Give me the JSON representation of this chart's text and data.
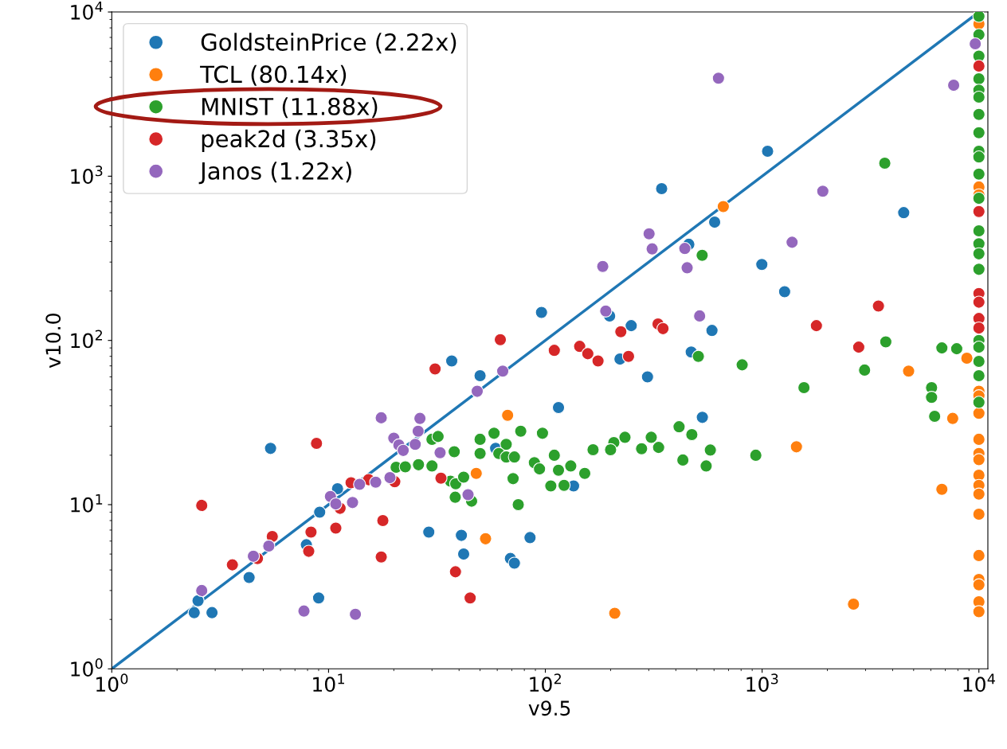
{
  "chart_data": {
    "type": "scatter",
    "xlabel": "v9.5",
    "ylabel": "v10.0",
    "log": "xy",
    "grid": false,
    "legend": "top left",
    "marker": "circle",
    "xlim": [
      1,
      11000
    ],
    "ylim": [
      1,
      10000
    ],
    "xticks": [
      {
        "value": 1,
        "label": "10$^{0}$"
      },
      {
        "value": 10,
        "label": "10$^{1}$"
      },
      {
        "value": 100,
        "label": "10$^{2}$"
      },
      {
        "value": 1000,
        "label": "10$^{3}$"
      },
      {
        "value": 10000,
        "label": "10$^{4}$"
      }
    ],
    "yticks": [
      {
        "value": 1,
        "label": "10$^{0}$"
      },
      {
        "value": 10,
        "label": "10$^{1}$"
      },
      {
        "value": 100,
        "label": "10$^{2}$"
      },
      {
        "value": 1000,
        "label": "10$^{3}$"
      },
      {
        "value": 10000,
        "label": "10$^{4}$"
      }
    ],
    "series": [
      {
        "name": "GoldsteinPrice (2.22x)",
        "color": "#1f77b4",
        "x": [
          2.4,
          2.5,
          2.9,
          4.3,
          5.4,
          7.9,
          9.1,
          9,
          11,
          29,
          37,
          41,
          42,
          50,
          59,
          69,
          72,
          85,
          96,
          115,
          135,
          198,
          221,
          249,
          296,
          344,
          459,
          471,
          530,
          587,
          604,
          997,
          1060,
          1270,
          4500
        ],
        "values": [
          2.2,
          2.6,
          2.2,
          3.6,
          22,
          5.7,
          9,
          2.7,
          12.5,
          6.8,
          75,
          6.5,
          5,
          61,
          22,
          4.7,
          4.4,
          6.3,
          148,
          39,
          13,
          141,
          77,
          123,
          60,
          840,
          385,
          85,
          34,
          115,
          525,
          290,
          1420,
          198,
          600
        ]
      },
      {
        "name": "TCL (80.14x)",
        "color": "#ff7f0e",
        "x": [
          67,
          48,
          53,
          662,
          209,
          1440,
          2640,
          4740,
          7570,
          6750,
          8800,
          10000,
          10000,
          10000,
          10000,
          10000,
          10000,
          10000,
          10000,
          10000,
          10000,
          10000,
          10000,
          10000,
          10000,
          10000,
          10000,
          10000,
          10000
        ],
        "values": [
          35,
          15.5,
          6.2,
          653,
          2.18,
          22.5,
          2.48,
          65,
          33.5,
          12.4,
          78,
          49,
          46,
          36,
          25,
          20.5,
          18.8,
          15.1,
          13.1,
          11.6,
          8.75,
          4.9,
          3.5,
          3.25,
          2.56,
          2.23,
          8460,
          860,
          770
        ]
      },
      {
        "name": "MNIST (11.88x)",
        "color": "#2ca02c",
        "x": [
          10000,
          10000,
          10000,
          10000,
          10000,
          10000,
          10000,
          10000,
          10000,
          10000,
          10000,
          10000,
          10000,
          10000,
          10000,
          10000,
          10000,
          10000,
          10000,
          10000,
          10000,
          3680,
          529,
          3720,
          6750,
          7900,
          2970,
          809,
          508,
          1560,
          6050,
          6050,
          6250,
          935,
          577,
          552,
          431,
          414,
          474,
          308,
          278,
          333,
          233,
          207,
          200,
          166,
          152,
          110,
          131,
          115,
          122,
          30,
          32,
          38,
          50,
          58,
          77,
          97,
          50,
          66,
          61,
          66,
          72,
          71,
          75,
          89,
          94,
          106,
          20.5,
          22.6,
          26,
          30,
          36.5,
          38.6,
          42,
          38.4,
          45.7
        ],
        "values": [
          9420,
          7270,
          5390,
          3920,
          3340,
          3030,
          2380,
          1840,
          1420,
          1310,
          1030,
          734,
          465,
          388,
          337,
          271,
          100,
          91,
          74.5,
          61,
          42,
          1200,
          330,
          98,
          90,
          89,
          66,
          71,
          80,
          51.6,
          51.6,
          45,
          34.5,
          20,
          21.5,
          17.2,
          18.7,
          29.8,
          26.7,
          25.7,
          21.9,
          22.3,
          25.7,
          23.9,
          21.6,
          21.6,
          15.5,
          20,
          17.2,
          16.2,
          13.1,
          25,
          26,
          21,
          25,
          27.2,
          28,
          27.2,
          20.5,
          23.3,
          20.5,
          19.5,
          19.5,
          14.4,
          10,
          18,
          16.5,
          13,
          16.9,
          17,
          17.5,
          17.2,
          13.9,
          13.4,
          14.7,
          11.1,
          10.5
        ]
      },
      {
        "name": "peak2d (3.35x)",
        "color": "#d62728",
        "x": [
          2.6,
          5.5,
          3.6,
          4.7,
          8.3,
          10.8,
          8.1,
          8.8,
          12.7,
          11.3,
          15.3,
          20.2,
          17.8,
          17.5,
          31,
          33,
          62,
          38.5,
          45,
          223,
          331,
          349,
          1780,
          3440,
          10000,
          10000,
          10000,
          10000,
          10000,
          10000,
          110,
          144,
          157,
          175,
          242,
          2790
        ],
        "values": [
          9.9,
          6.4,
          4.3,
          4.7,
          6.8,
          7.2,
          5.2,
          23.6,
          13.6,
          9.5,
          14.2,
          13.8,
          8,
          4.8,
          67,
          14.5,
          101,
          3.9,
          2.7,
          113,
          126,
          118,
          123,
          162,
          4690,
          609,
          193,
          171,
          136,
          119,
          87,
          92,
          83,
          75,
          80,
          91
        ]
      },
      {
        "name": "Janos (1.22x)",
        "color": "#9467bd",
        "x": [
          2.6,
          4.5,
          5.3,
          7.7,
          13.3,
          10.2,
          10.8,
          12.9,
          13.9,
          16.5,
          19.2,
          17.5,
          20,
          21.1,
          22.1,
          25.1,
          25.9,
          26.4,
          32.7,
          44,
          48.5,
          63.6,
          629,
          7650,
          9620,
          1905,
          1375,
          301,
          311,
          440,
          451,
          184,
          190,
          515
        ],
        "values": [
          3,
          4.85,
          5.6,
          2.25,
          2.15,
          11.2,
          10.1,
          10.3,
          13.3,
          13.7,
          14.6,
          33.8,
          25.4,
          23.1,
          21.4,
          23.3,
          28,
          33.5,
          20.7,
          11.5,
          49,
          65,
          3950,
          3580,
          6400,
          810,
          396,
          446,
          361,
          363,
          277,
          282,
          151,
          141
        ]
      },
      {
        "type": "line",
        "marker": "none",
        "color": "#1f77b4",
        "x": [
          1,
          10000
        ],
        "values": [
          1,
          10000
        ]
      }
    ]
  }
}
